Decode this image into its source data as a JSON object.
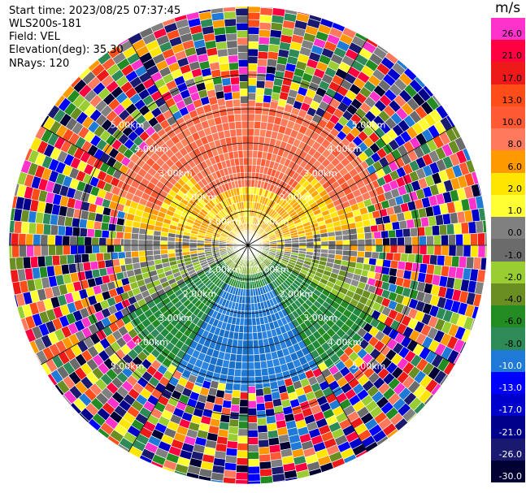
{
  "header": {
    "start_time": "Start time: 2023/08/25 07:37:45",
    "instrument": "WLS200s-181",
    "field": "Field: VEL",
    "elevation": "Elevation(deg): 35.30",
    "nrays": "NRays: 120"
  },
  "colorbar": {
    "unit": "m/s",
    "levels": [
      {
        "label": "26.0",
        "color": "#ff33cc"
      },
      {
        "label": "21.0",
        "color": "#ff0040"
      },
      {
        "label": "17.0",
        "color": "#ee1a1a"
      },
      {
        "label": "13.0",
        "color": "#ff4d1a"
      },
      {
        "label": "10.0",
        "color": "#ff5a33"
      },
      {
        "label": "8.0",
        "color": "#ff7a5c"
      },
      {
        "label": "6.0",
        "color": "#ff9900"
      },
      {
        "label": "2.0",
        "color": "#ffe600"
      },
      {
        "label": "1.0",
        "color": "#ffff33"
      },
      {
        "label": "0.0",
        "color": "#808080"
      },
      {
        "label": "-1.0",
        "color": "#6b6b6b"
      },
      {
        "label": "-2.0",
        "color": "#9acd32"
      },
      {
        "label": "-4.0",
        "color": "#6b8e23"
      },
      {
        "label": "-6.0",
        "color": "#228b22"
      },
      {
        "label": "-8.0",
        "color": "#2e8b57"
      },
      {
        "label": "-10.0",
        "color": "#1e7ad6"
      },
      {
        "label": "-13.0",
        "color": "#0000ff"
      },
      {
        "label": "-17.0",
        "color": "#0000cc"
      },
      {
        "label": "-21.0",
        "color": "#00008b"
      },
      {
        "label": "-26.0",
        "color": "#191970"
      },
      {
        "label": "-30.0",
        "color": "#000033"
      }
    ]
  },
  "chart_data": {
    "type": "ppi",
    "field": "VEL",
    "units": "m/s",
    "n_rays": 120,
    "elevation_deg": 35.3,
    "range_rings_km": [
      1.0,
      2.0,
      3.0,
      4.0,
      5.0
    ],
    "ring_labels": [
      "1.00km",
      "2.00km",
      "3.00km",
      "4.00km",
      "5.00km"
    ],
    "max_range_km": 7.0,
    "spokes_deg": [
      0,
      30,
      60,
      90,
      120,
      150,
      180,
      210,
      240,
      270,
      300,
      330
    ],
    "regions": [
      {
        "from_bearing_deg": 290,
        "to_bearing_deg": 70,
        "max_range_km": 4.2,
        "dominant": "8.0 to 10.0"
      },
      {
        "from_bearing_deg": 240,
        "to_bearing_deg": 290,
        "max_range_km": 3.6,
        "dominant": "1.0 to 6.0"
      },
      {
        "from_bearing_deg": 70,
        "to_bearing_deg": 110,
        "max_range_km": 3.6,
        "dominant": "1.0 to 6.0"
      },
      {
        "from_bearing_deg": 110,
        "to_bearing_deg": 240,
        "max_range_km": 4.2,
        "dominant": "-10.0 to -2.0"
      }
    ],
    "noise_beyond_km": 4.2
  }
}
